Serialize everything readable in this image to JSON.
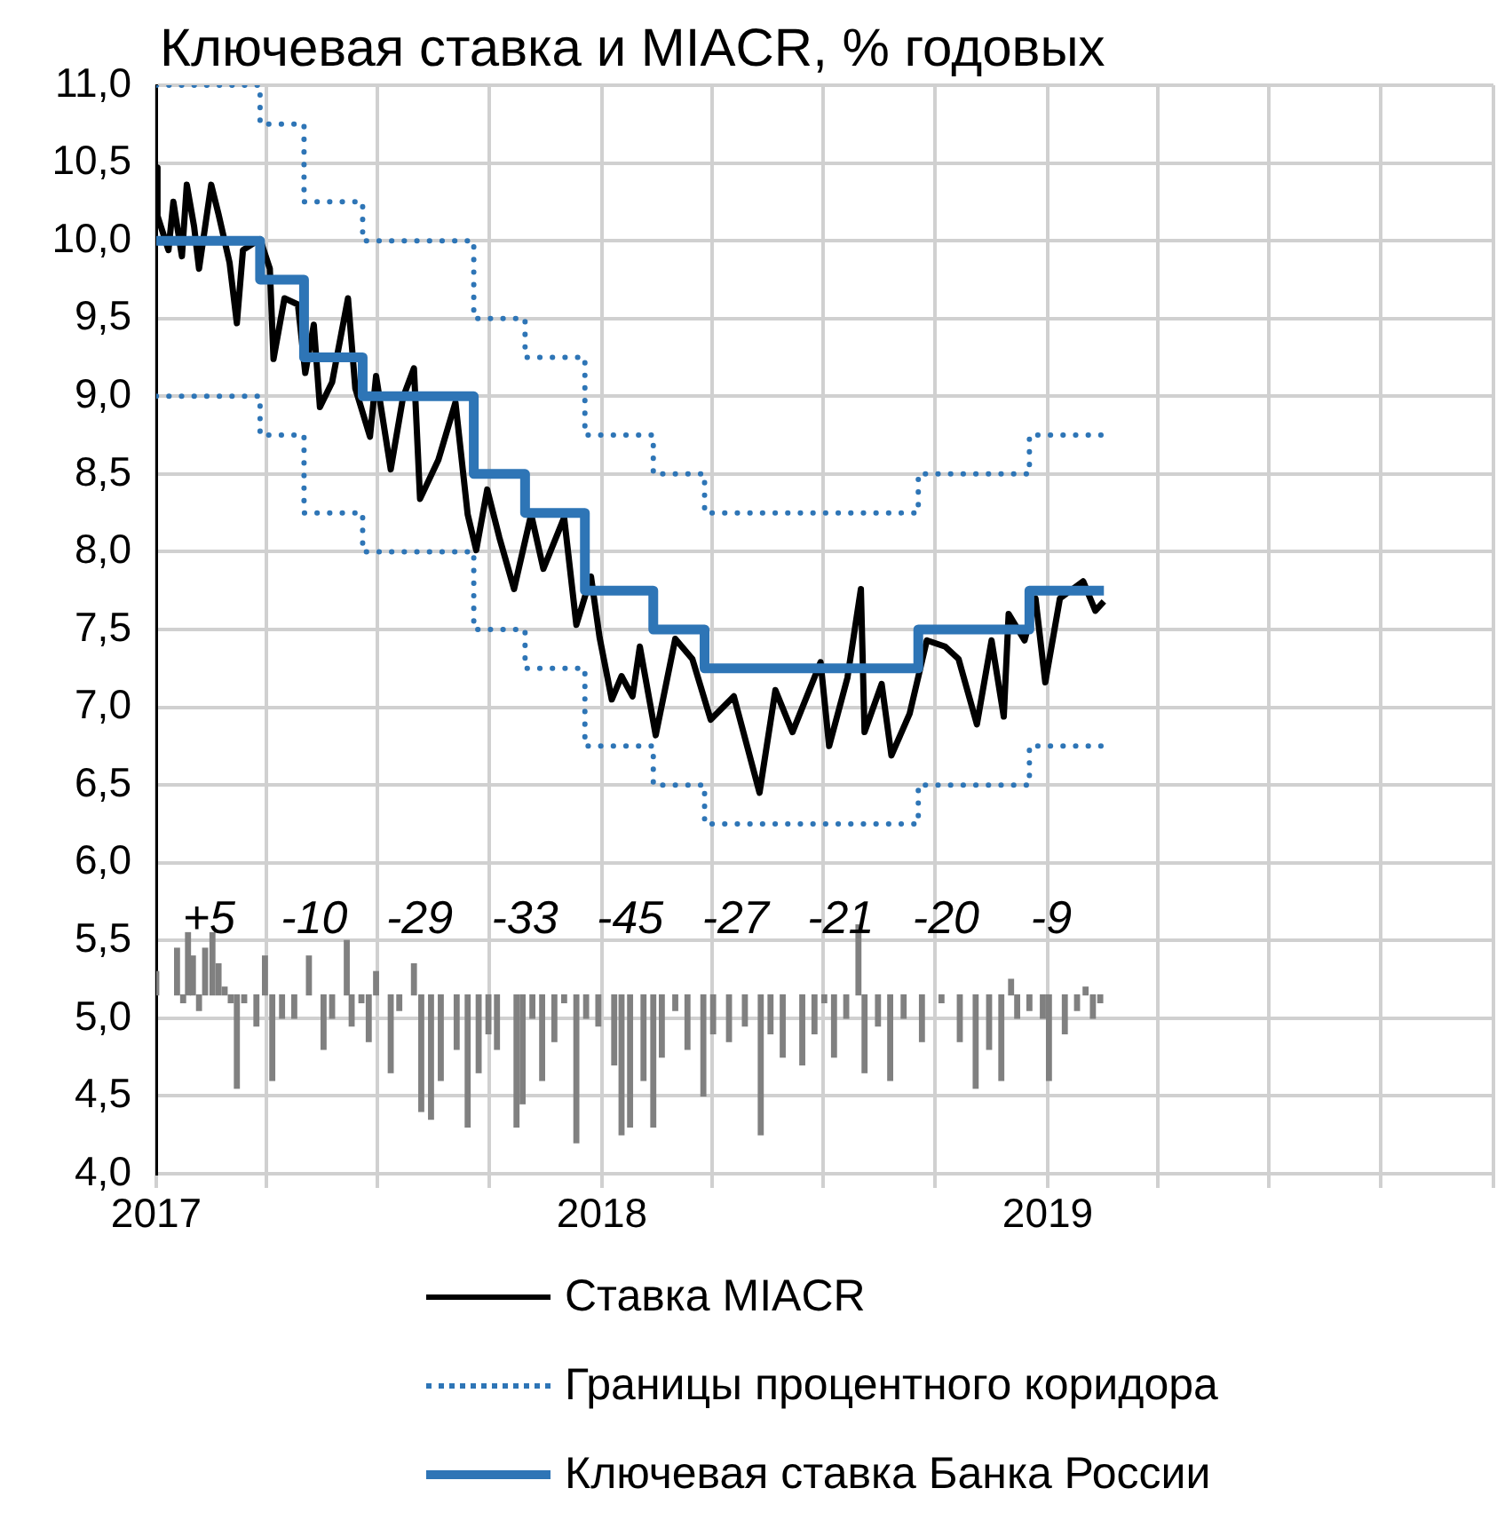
{
  "chart_data": {
    "type": "line",
    "title": "Ключевая ставка и MIACR, % годовых",
    "xlim": [
      "2017",
      "2020"
    ],
    "xticks": [
      "2017",
      {
        "value": "2017-04",
        "label": null
      },
      {
        "value": "2017-07",
        "label": null
      },
      {
        "value": "2017-10",
        "label": null
      },
      "2018",
      {
        "value": "2018-04",
        "label": null
      },
      {
        "value": "2018-07",
        "label": null
      },
      {
        "value": "2018-10",
        "label": null
      },
      "2019",
      {
        "value": "2019-04",
        "label": null
      },
      {
        "value": "2019-07",
        "label": null
      },
      {
        "value": "2019-10",
        "label": null
      },
      {
        "value": "2020",
        "label": null
      }
    ],
    "ylim": [
      4,
      11
    ],
    "yticks": [
      {
        "value": 4,
        "label": "4,0"
      },
      {
        "value": 4.5,
        "label": "4,5"
      },
      {
        "value": 5,
        "label": "5,0"
      },
      {
        "value": 5.5,
        "label": "5,5"
      },
      {
        "value": 6,
        "label": "6,0"
      },
      {
        "value": 6.5,
        "label": "6,5"
      },
      {
        "value": 7,
        "label": "7,0"
      },
      {
        "value": 7.5,
        "label": "7,5"
      },
      {
        "value": 8,
        "label": "8,0"
      },
      {
        "value": 8.5,
        "label": "8,5"
      },
      {
        "value": 9,
        "label": "9,0"
      },
      {
        "value": 9.5,
        "label": "9,5"
      },
      {
        "value": 10,
        "label": "10,0"
      },
      {
        "value": 10.5,
        "label": "10,5"
      },
      {
        "value": 11,
        "label": "11,0"
      }
    ],
    "grid": true,
    "legend": "bottom",
    "marker": "none",
    "series": [
      {
        "name": "Ставка MIACR",
        "color": "#000000",
        "x": [
          "2017-01-01",
          "2017-01-02",
          "2017-01-11",
          "2017-01-15",
          "2017-01-22",
          "2017-01-26",
          "2017-02-01",
          "2017-02-05",
          "2017-02-15",
          "2017-02-21",
          "2017-03-02",
          "2017-03-08",
          "2017-03-13",
          "2017-03-27",
          "2017-04-04",
          "2017-04-07",
          "2017-04-16",
          "2017-04-27",
          "2017-05-03",
          "2017-05-10",
          "2017-05-15",
          "2017-05-25",
          "2017-06-07",
          "2017-06-13",
          "2017-06-25",
          "2017-06-30",
          "2017-07-12",
          "2017-07-22",
          "2017-07-31",
          "2017-08-05",
          "2017-08-20",
          "2017-09-03",
          "2017-09-13",
          "2017-09-20",
          "2017-09-29",
          "2017-10-09",
          "2017-10-21",
          "2017-11-04",
          "2017-11-14",
          "2017-12-01",
          "2017-12-11",
          "2017-12-23",
          "2017-12-30",
          "2018-01-09",
          "2018-01-17",
          "2018-01-26",
          "2018-02-01",
          "2018-02-14",
          "2018-03-02",
          "2018-03-16",
          "2018-03-31",
          "2018-04-19",
          "2018-05-10",
          "2018-05-23",
          "2018-06-06",
          "2018-06-29",
          "2018-07-06",
          "2018-07-21",
          "2018-08-01",
          "2018-08-04",
          "2018-08-18",
          "2018-08-26",
          "2018-09-10",
          "2018-09-24",
          "2018-10-09",
          "2018-10-20",
          "2018-11-04",
          "2018-11-16",
          "2018-11-26",
          "2018-11-30",
          "2018-12-13",
          "2018-12-22",
          "2018-12-30",
          "2019-01-11",
          "2019-01-30",
          "2019-02-09",
          "2019-02-16"
        ],
        "values": [
          10.47,
          10.16,
          9.94,
          10.25,
          9.9,
          10.36,
          10.09,
          9.82,
          10.36,
          10.17,
          9.86,
          9.47,
          9.94,
          10.01,
          9.82,
          9.24,
          9.63,
          9.59,
          9.15,
          9.46,
          8.93,
          9.09,
          9.63,
          9.05,
          8.74,
          9.13,
          8.53,
          8.99,
          9.18,
          8.34,
          8.59,
          8.96,
          8.24,
          8.01,
          8.4,
          8.09,
          7.76,
          8.24,
          7.89,
          8.22,
          7.53,
          7.84,
          7.45,
          7.05,
          7.2,
          7.07,
          7.39,
          6.82,
          7.44,
          7.31,
          6.92,
          7.07,
          6.45,
          7.11,
          6.84,
          7.29,
          6.75,
          7.19,
          7.76,
          6.84,
          7.15,
          6.69,
          6.96,
          7.43,
          7.39,
          7.31,
          6.89,
          7.43,
          6.94,
          7.6,
          7.43,
          7.7,
          7.16,
          7.7,
          7.81,
          7.62,
          7.68
        ]
      },
      {
        "name": "Границы процентного коридора",
        "type": "step",
        "color": "#2e75b6",
        "line_style": "dotted",
        "x": [
          "2017-01-01",
          "2017-03-27",
          "2017-05-02",
          "2017-06-19",
          "2017-09-18",
          "2017-10-30",
          "2017-12-18",
          "2018-02-12",
          "2018-03-26",
          "2018-09-17",
          "2018-12-17",
          "2019-02-16"
        ],
        "values": [
          11,
          10.75,
          10.25,
          10,
          9.5,
          9.25,
          8.75,
          8.5,
          8.25,
          8.5,
          8.75,
          8.75
        ]
      },
      {
        "type": "step",
        "color": "#2e75b6",
        "line_style": "dotted",
        "x": [
          "2017-01-01",
          "2017-03-27",
          "2017-05-02",
          "2017-06-19",
          "2017-09-18",
          "2017-10-30",
          "2017-12-18",
          "2018-02-12",
          "2018-03-26",
          "2018-09-17",
          "2018-12-17",
          "2019-02-16"
        ],
        "values": [
          9,
          8.75,
          8.25,
          8,
          7.5,
          7.25,
          6.75,
          6.5,
          6.25,
          6.5,
          6.75,
          6.75
        ]
      },
      {
        "name": "Ключевая ставка Банка России",
        "type": "step",
        "color": "#2e75b6",
        "x": [
          "2017-01-01",
          "2017-03-27",
          "2017-05-02",
          "2017-06-19",
          "2017-09-18",
          "2017-10-30",
          "2017-12-18",
          "2018-02-12",
          "2018-03-26",
          "2018-09-17",
          "2018-12-17",
          "2019-02-16"
        ],
        "values": [
          10,
          9.75,
          9.25,
          9,
          8.5,
          8.25,
          7.75,
          7.5,
          7.25,
          7.5,
          7.75,
          7.75
        ]
      },
      {
        "type": "bar",
        "color": "#808080",
        "x": [
          "2017-01-01",
          "2017-01-18",
          "2017-01-23",
          "2017-01-27",
          "2017-01-31",
          "2017-02-05",
          "2017-02-10",
          "2017-02-16",
          "2017-02-21",
          "2017-02-26",
          "2017-03-03",
          "2017-03-08",
          "2017-03-14",
          "2017-03-24",
          "2017-03-31",
          "2017-04-06",
          "2017-04-14",
          "2017-04-24",
          "2017-05-06",
          "2017-05-18",
          "2017-05-25",
          "2017-06-06",
          "2017-06-10",
          "2017-06-18",
          "2017-06-24",
          "2017-06-30",
          "2017-07-12",
          "2017-07-19",
          "2017-07-31",
          "2017-08-06",
          "2017-08-14",
          "2017-08-22",
          "2017-09-04",
          "2017-09-13",
          "2017-09-22",
          "2017-09-30",
          "2017-10-07",
          "2017-10-23",
          "2017-10-28",
          "2017-11-05",
          "2017-11-13",
          "2017-11-23",
          "2017-12-01",
          "2017-12-11",
          "2017-12-19",
          "2017-12-29",
          "2018-01-11",
          "2018-01-17",
          "2018-01-24",
          "2018-02-04",
          "2018-02-12",
          "2018-02-19",
          "2018-03-02",
          "2018-03-12",
          "2018-03-25",
          "2018-04-02",
          "2018-04-15",
          "2018-04-28",
          "2018-05-11",
          "2018-05-19",
          "2018-05-29",
          "2018-06-14",
          "2018-06-24",
          "2018-07-02",
          "2018-07-10",
          "2018-07-20",
          "2018-07-30",
          "2018-08-04",
          "2018-08-15",
          "2018-08-25",
          "2018-09-05",
          "2018-09-20",
          "2018-10-06",
          "2018-10-21",
          "2018-11-03",
          "2018-11-14",
          "2018-11-24",
          "2018-12-02",
          "2018-12-07",
          "2018-12-17",
          "2018-12-28",
          "2019-01-02",
          "2019-01-15",
          "2019-01-25",
          "2019-02-01",
          "2019-02-07",
          "2019-02-13"
        ],
        "base": [
          5.15,
          5.15,
          5.15,
          5.15,
          5.15,
          5.15,
          5.15,
          5.15,
          5.15,
          5.15,
          5.15,
          5.15,
          5.15,
          5.15,
          5.15,
          5.15,
          5.15,
          5.15,
          5.15,
          5.15,
          5.15,
          5.15,
          5.15,
          5.15,
          5.15,
          5.15,
          5.15,
          5.15,
          5.15,
          5.15,
          5.15,
          5.15,
          5.15,
          5.15,
          5.15,
          5.15,
          5.15,
          5.15,
          5.15,
          5.15,
          5.15,
          5.15,
          5.15,
          5.15,
          5.15,
          5.15,
          5.15,
          5.15,
          5.15,
          5.15,
          5.15,
          5.15,
          5.15,
          5.15,
          5.15,
          5.15,
          5.15,
          5.15,
          5.15,
          5.15,
          5.15,
          5.15,
          5.15,
          5.15,
          5.15,
          5.15,
          5.15,
          5.15,
          5.15,
          5.15,
          5.15,
          5.15,
          5.15,
          5.15,
          5.15,
          5.15,
          5.15,
          5.15,
          5.15,
          5.15,
          5.15,
          5.15,
          5.15,
          5.15,
          5.15,
          5.15,
          5.15
        ],
        "values": [
          0.15,
          0.3,
          -0.05,
          0.4,
          0.25,
          -0.1,
          0.3,
          0.4,
          0.2,
          0.05,
          -0.05,
          -0.6,
          -0.05,
          -0.2,
          0.25,
          -0.55,
          -0.15,
          -0.15,
          0.25,
          -0.35,
          -0.15,
          0.35,
          -0.2,
          -0.05,
          -0.3,
          0.15,
          -0.5,
          -0.1,
          0.2,
          -0.75,
          -0.8,
          -0.55,
          -0.35,
          -0.85,
          -0.5,
          -0.25,
          -0.35,
          -0.85,
          -0.7,
          -0.15,
          -0.55,
          -0.3,
          -0.05,
          -0.95,
          -0.15,
          -0.2,
          -0.45,
          -0.9,
          -0.85,
          -0.55,
          -0.85,
          -0.4,
          -0.1,
          -0.35,
          -0.65,
          -0.25,
          -0.3,
          -0.2,
          -0.9,
          -0.25,
          -0.4,
          -0.45,
          -0.25,
          -0.05,
          -0.4,
          -0.15,
          0.45,
          -0.5,
          -0.2,
          -0.55,
          -0.15,
          -0.3,
          -0.05,
          -0.3,
          -0.6,
          -0.35,
          -0.55,
          0.1,
          -0.15,
          -0.1,
          -0.15,
          -0.55,
          -0.25,
          -0.1,
          0.05,
          -0.15,
          -0.05
        ]
      }
    ],
    "annotations": [
      "+5",
      "-10",
      "-29",
      "-33",
      "-45",
      "-27",
      "-21",
      "-20",
      "-9"
    ]
  }
}
